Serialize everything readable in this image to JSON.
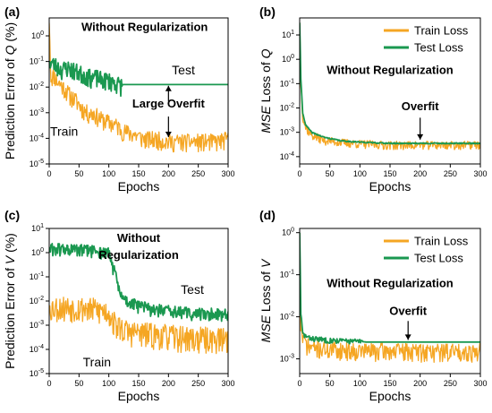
{
  "colors": {
    "train": "#f5a623",
    "test": "#1a9850",
    "text": "#000000"
  },
  "chart_data": [
    {
      "id": "a",
      "type": "line",
      "panel_label": "(a)",
      "xlabel": "Epochs",
      "ylabel_parts": [
        "Prediction Error of ",
        "Q",
        " (%)"
      ],
      "scale": "log",
      "xlim": [
        0,
        300
      ],
      "ylim": [
        -5,
        0.7
      ],
      "xticks": [
        0,
        50,
        100,
        150,
        200,
        250,
        300
      ],
      "yticks": [
        {
          "value": 0,
          "label": "10",
          "exp": "0"
        },
        {
          "value": -1,
          "label": "10",
          "exp": "-1"
        },
        {
          "value": -2,
          "label": "10",
          "exp": "-2"
        },
        {
          "value": -3,
          "label": "10",
          "exp": "-3"
        },
        {
          "value": -4,
          "label": "10",
          "exp": "-4"
        },
        {
          "value": -5,
          "label": "10",
          "exp": "-5"
        }
      ],
      "series": [
        {
          "key": "train",
          "color": "train",
          "points": [
            [
              0,
              0.5
            ],
            [
              3,
              -1.6
            ],
            [
              8,
              -1.5
            ],
            [
              15,
              -1.8
            ],
            [
              25,
              -2.0
            ],
            [
              35,
              -2.3
            ],
            [
              45,
              -2.5
            ],
            [
              55,
              -2.8
            ],
            [
              65,
              -3.0
            ],
            [
              75,
              -3.0
            ],
            [
              85,
              -3.2
            ],
            [
              95,
              -3.3
            ],
            [
              105,
              -3.4
            ],
            [
              115,
              -3.5
            ],
            [
              125,
              -3.7
            ],
            [
              140,
              -3.8
            ],
            [
              160,
              -4.0
            ],
            [
              180,
              -4.0
            ],
            [
              200,
              -4.1
            ],
            [
              220,
              -4.1
            ],
            [
              240,
              -4.1
            ],
            [
              260,
              -4.1
            ],
            [
              280,
              -4.1
            ],
            [
              300,
              -4.0
            ]
          ],
          "noise": 0.45,
          "seed": 11
        },
        {
          "key": "test",
          "color": "test",
          "points": [
            [
              0,
              -1.0
            ],
            [
              10,
              -1.1
            ],
            [
              20,
              -1.3
            ],
            [
              30,
              -1.2
            ],
            [
              40,
              -1.3
            ],
            [
              50,
              -1.4
            ],
            [
              60,
              -1.5
            ],
            [
              70,
              -1.6
            ],
            [
              80,
              -1.6
            ],
            [
              90,
              -1.7
            ],
            [
              100,
              -1.7
            ],
            [
              110,
              -1.8
            ],
            [
              120,
              -1.9
            ],
            [
              125,
              -1.9
            ],
            [
              300,
              -1.9
            ]
          ],
          "noise": 0.45,
          "noise_until": 122,
          "seed": 23
        }
      ],
      "annotations": [
        {
          "text": "Without Regularization",
          "x": 160,
          "y": 0.2,
          "style": "bold"
        },
        {
          "text": "Test",
          "x": 225,
          "y": -1.5,
          "style": "plain"
        },
        {
          "text": "Train",
          "x": 25,
          "y": -3.9,
          "style": "plain"
        },
        {
          "text": "Large Overfit",
          "x": 200,
          "y": -2.8,
          "style": "bold"
        }
      ],
      "arrows": [
        {
          "x": 200,
          "from": -2.55,
          "to": -1.95
        },
        {
          "x": 200,
          "from": -3.15,
          "to": -3.95
        }
      ]
    },
    {
      "id": "b",
      "type": "line",
      "panel_label": "(b)",
      "xlabel": "Epochs",
      "ylabel_parts": [
        "MSE",
        " Loss of ",
        "Q"
      ],
      "ylabel_italic": [
        true,
        false,
        true
      ],
      "scale": "log",
      "xlim": [
        0,
        300
      ],
      "ylim": [
        -4.3,
        1.7
      ],
      "xticks": [
        0,
        50,
        100,
        150,
        200,
        250,
        300
      ],
      "yticks": [
        {
          "value": 1,
          "label": "10",
          "exp": "1"
        },
        {
          "value": 0,
          "label": "10",
          "exp": "0"
        },
        {
          "value": -1,
          "label": "10",
          "exp": "-1"
        },
        {
          "value": -2,
          "label": "10",
          "exp": "-2"
        },
        {
          "value": -3,
          "label": "10",
          "exp": "-3"
        },
        {
          "value": -4,
          "label": "10",
          "exp": "-4"
        }
      ],
      "legend": {
        "placement": "top-right",
        "entries": [
          {
            "label": "Train Loss",
            "color": "train"
          },
          {
            "label": "Test Loss",
            "color": "test"
          }
        ]
      },
      "series": [
        {
          "key": "train",
          "color": "train",
          "points": [
            [
              0,
              1.5
            ],
            [
              2,
              -1.0
            ],
            [
              5,
              -2.3
            ],
            [
              10,
              -2.8
            ],
            [
              20,
              -3.1
            ],
            [
              40,
              -3.3
            ],
            [
              70,
              -3.4
            ],
            [
              100,
              -3.45
            ],
            [
              150,
              -3.5
            ],
            [
              200,
              -3.5
            ],
            [
              250,
              -3.5
            ],
            [
              300,
              -3.5
            ]
          ],
          "noise": 0.22,
          "seed": 37
        },
        {
          "key": "test",
          "color": "test",
          "points": [
            [
              0,
              1.5
            ],
            [
              2,
              -0.8
            ],
            [
              5,
              -2.2
            ],
            [
              10,
              -2.7
            ],
            [
              20,
              -3.0
            ],
            [
              40,
              -3.2
            ],
            [
              70,
              -3.35
            ],
            [
              100,
              -3.4
            ],
            [
              150,
              -3.45
            ],
            [
              200,
              -3.45
            ],
            [
              250,
              -3.45
            ],
            [
              300,
              -3.45
            ]
          ],
          "noise": 0.03,
          "seed": 41
        }
      ],
      "annotations": [
        {
          "text": "Without Regularization",
          "x": 150,
          "y": -0.6,
          "style": "bold"
        },
        {
          "text": "Overfit",
          "x": 200,
          "y": -2.1,
          "style": "bold"
        }
      ],
      "arrows": [
        {
          "x": 200,
          "from": -2.4,
          "to": -3.3
        }
      ]
    },
    {
      "id": "c",
      "type": "line",
      "panel_label": "(c)",
      "xlabel": "Epochs",
      "ylabel_parts": [
        "Prediction Error of ",
        "V",
        " (%)"
      ],
      "ylabel_italic": [
        false,
        true,
        false
      ],
      "scale": "log",
      "xlim": [
        0,
        300
      ],
      "ylim": [
        -5,
        1
      ],
      "xticks": [
        0,
        50,
        100,
        150,
        200,
        250,
        300
      ],
      "yticks": [
        {
          "value": 1,
          "label": "10",
          "exp": "1"
        },
        {
          "value": 0,
          "label": "10",
          "exp": "0"
        },
        {
          "value": -1,
          "label": "10",
          "exp": "-1"
        },
        {
          "value": -2,
          "label": "10",
          "exp": "-2"
        },
        {
          "value": -3,
          "label": "10",
          "exp": "-3"
        },
        {
          "value": -4,
          "label": "10",
          "exp": "-4"
        },
        {
          "value": -5,
          "label": "10",
          "exp": "-5"
        }
      ],
      "series": [
        {
          "key": "train",
          "color": "train",
          "points": [
            [
              0,
              -2.2
            ],
            [
              50,
              -2.2
            ],
            [
              100,
              -2.4
            ],
            [
              110,
              -2.9
            ],
            [
              130,
              -3.2
            ],
            [
              160,
              -3.3
            ],
            [
              200,
              -3.4
            ],
            [
              250,
              -3.5
            ],
            [
              300,
              -3.5
            ]
          ],
          "noise": 0.7,
          "seed": 53
        },
        {
          "key": "test",
          "color": "test",
          "points": [
            [
              0,
              0.2
            ],
            [
              40,
              0.15
            ],
            [
              80,
              0.1
            ],
            [
              100,
              0.0
            ],
            [
              110,
              -0.8
            ],
            [
              120,
              -1.8
            ],
            [
              140,
              -2.1
            ],
            [
              170,
              -2.3
            ],
            [
              200,
              -2.4
            ],
            [
              250,
              -2.5
            ],
            [
              300,
              -2.5
            ]
          ],
          "noise": 0.35,
          "seed": 61
        }
      ],
      "annotations": [
        {
          "text": "Without",
          "x": 150,
          "y": 0.45,
          "style": "bold"
        },
        {
          "text": "Regularization",
          "x": 150,
          "y": -0.25,
          "style": "bold"
        },
        {
          "text": "Test",
          "x": 240,
          "y": -1.7,
          "style": "plain"
        },
        {
          "text": "Train",
          "x": 80,
          "y": -4.7,
          "style": "plain"
        }
      ],
      "arrows": []
    },
    {
      "id": "d",
      "type": "line",
      "panel_label": "(d)",
      "xlabel": "Epochs",
      "ylabel_parts": [
        "MSE",
        " Loss of ",
        "V"
      ],
      "ylabel_italic": [
        true,
        false,
        true
      ],
      "scale": "log",
      "xlim": [
        0,
        300
      ],
      "ylim": [
        -3.35,
        0.1
      ],
      "xticks": [
        0,
        50,
        100,
        150,
        200,
        250,
        300
      ],
      "yticks": [
        {
          "value": 0,
          "label": "10",
          "exp": "0"
        },
        {
          "value": -1,
          "label": "10",
          "exp": "-1"
        },
        {
          "value": -2,
          "label": "10",
          "exp": "-2"
        },
        {
          "value": -3,
          "label": "10",
          "exp": "-3"
        }
      ],
      "legend": {
        "placement": "top-right",
        "entries": [
          {
            "label": "Train Loss",
            "color": "train"
          },
          {
            "label": "Test Loss",
            "color": "test"
          }
        ]
      },
      "series": [
        {
          "key": "train",
          "color": "train",
          "points": [
            [
              0,
              0.0
            ],
            [
              2,
              -2.2
            ],
            [
              5,
              -2.5
            ],
            [
              15,
              -2.7
            ],
            [
              50,
              -2.75
            ],
            [
              100,
              -2.78
            ],
            [
              200,
              -2.8
            ],
            [
              300,
              -2.8
            ]
          ],
          "noise": 0.28,
          "seed": 71
        },
        {
          "key": "test",
          "color": "test",
          "points": [
            [
              0,
              0.0
            ],
            [
              2,
              -1.9
            ],
            [
              5,
              -2.4
            ],
            [
              15,
              -2.5
            ],
            [
              50,
              -2.55
            ],
            [
              100,
              -2.58
            ],
            [
              110,
              -2.6
            ],
            [
              300,
              -2.6
            ]
          ],
          "noise": 0.08,
          "noise_until": 105,
          "seed": 83
        }
      ],
      "annotations": [
        {
          "text": "Without Regularization",
          "x": 150,
          "y": -1.3,
          "style": "bold"
        },
        {
          "text": "Overfit",
          "x": 180,
          "y": -1.95,
          "style": "bold"
        }
      ],
      "arrows": [
        {
          "x": 180,
          "from": -2.1,
          "to": -2.55
        }
      ]
    }
  ]
}
